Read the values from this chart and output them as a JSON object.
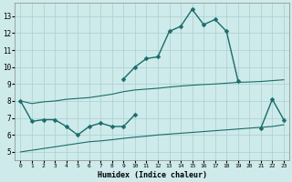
{
  "xlabel": "Humidex (Indice chaleur)",
  "x_values": [
    0,
    1,
    2,
    3,
    4,
    5,
    6,
    7,
    8,
    9,
    10,
    11,
    12,
    13,
    14,
    15,
    16,
    17,
    18,
    19,
    20,
    21,
    22,
    23
  ],
  "line_zigzag": [
    8.0,
    6.8,
    6.9,
    6.9,
    6.5,
    6.0,
    6.5,
    6.7,
    6.5,
    6.5,
    7.2,
    null,
    null,
    null,
    null,
    null,
    null,
    null,
    null,
    null,
    null,
    null,
    null,
    null
  ],
  "line_main": [
    null,
    null,
    null,
    null,
    null,
    null,
    null,
    null,
    null,
    9.3,
    10.0,
    10.5,
    10.6,
    12.1,
    12.4,
    13.4,
    12.5,
    12.8,
    12.1,
    9.2,
    null,
    6.4,
    8.1,
    6.9
  ],
  "line_upper": [
    8.0,
    7.85,
    7.95,
    8.0,
    8.1,
    8.15,
    8.2,
    8.3,
    8.4,
    8.55,
    8.65,
    8.7,
    8.75,
    8.82,
    8.88,
    8.93,
    8.97,
    9.0,
    9.05,
    9.1,
    9.12,
    9.15,
    9.2,
    9.25
  ],
  "line_lower": [
    5.0,
    5.1,
    5.2,
    5.3,
    5.4,
    5.5,
    5.6,
    5.65,
    5.72,
    5.8,
    5.87,
    5.93,
    6.0,
    6.05,
    6.1,
    6.15,
    6.2,
    6.25,
    6.3,
    6.35,
    6.4,
    6.45,
    6.5,
    6.6
  ],
  "ylim": [
    4.5,
    13.8
  ],
  "yticks": [
    5,
    6,
    7,
    8,
    9,
    10,
    11,
    12,
    13
  ],
  "xticks": [
    0,
    1,
    2,
    3,
    4,
    5,
    6,
    7,
    8,
    9,
    10,
    11,
    12,
    13,
    14,
    15,
    16,
    17,
    18,
    19,
    20,
    21,
    22,
    23
  ],
  "bg_color": "#ceeaea",
  "grid_color": "#aacfcf",
  "line_color": "#1a6b6b",
  "figsize": [
    3.2,
    2.0
  ],
  "dpi": 100
}
